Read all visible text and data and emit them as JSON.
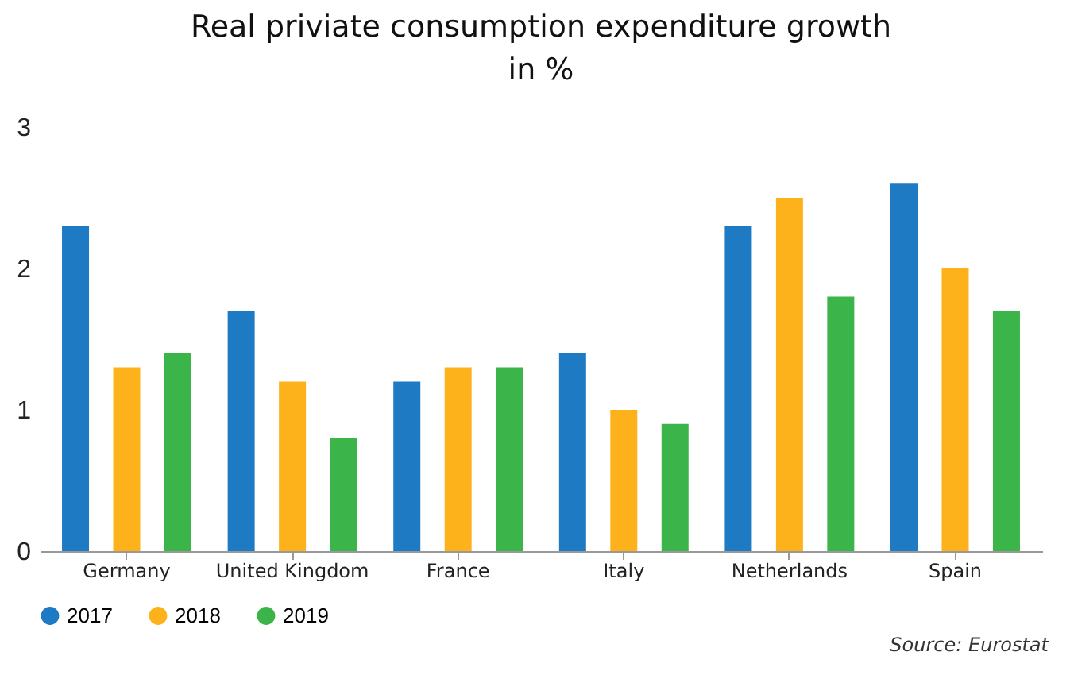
{
  "chart_data": {
    "type": "bar",
    "title": "Real priviate consumption expenditure growth",
    "subtitle": "in %",
    "categories": [
      "Germany",
      "United Kingdom",
      "France",
      "Italy",
      "Netherlands",
      "Spain"
    ],
    "series": [
      {
        "name": "2017",
        "color": "#1f7ac4",
        "values": [
          2.3,
          1.7,
          1.2,
          1.4,
          2.3,
          2.6
        ]
      },
      {
        "name": "2018",
        "color": "#fdb21c",
        "values": [
          1.3,
          1.2,
          1.3,
          1.0,
          2.5,
          2.0
        ]
      },
      {
        "name": "2019",
        "color": "#3bb54a",
        "values": [
          1.4,
          0.8,
          1.3,
          0.9,
          1.8,
          1.7
        ]
      }
    ],
    "ylim": [
      0,
      3
    ],
    "yticks": [
      0,
      1,
      2,
      3
    ],
    "legend": "bottom",
    "annotations": [
      "Source: Eurostat"
    ]
  }
}
